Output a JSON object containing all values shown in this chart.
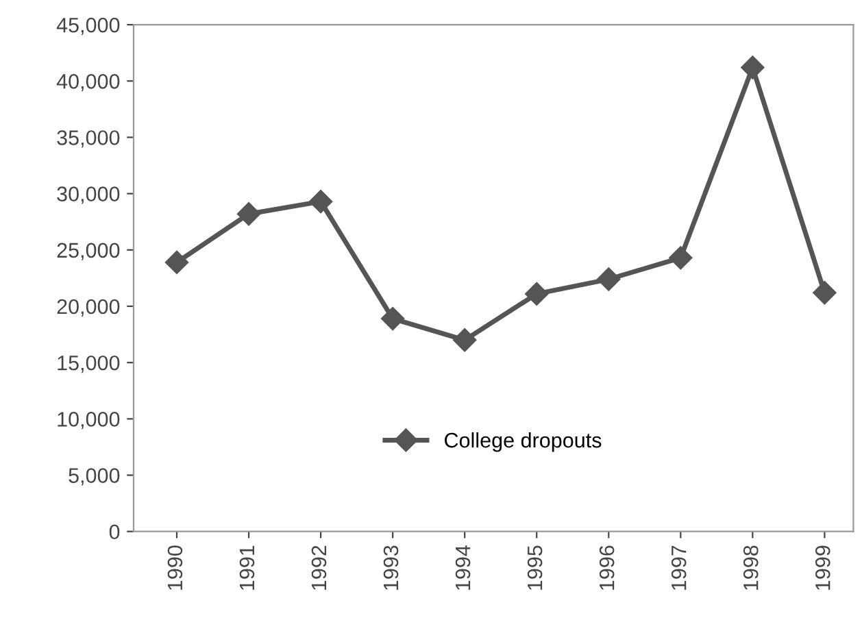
{
  "chart_data": {
    "type": "line",
    "categories": [
      "1990",
      "1991",
      "1992",
      "1993",
      "1994",
      "1995",
      "1996",
      "1997",
      "1998",
      "1999"
    ],
    "series": [
      {
        "name": "College dropouts",
        "color": "#555555",
        "values": [
          23900,
          28200,
          29300,
          18900,
          17000,
          21100,
          22400,
          24300,
          41200,
          21200
        ]
      }
    ],
    "ylim": [
      0,
      45000
    ],
    "yticks": [
      {
        "value": 0,
        "label": "0"
      },
      {
        "value": 5000,
        "label": "5,000"
      },
      {
        "value": 10000,
        "label": "10,000"
      },
      {
        "value": 15000,
        "label": "15,000"
      },
      {
        "value": 20000,
        "label": "20,000"
      },
      {
        "value": 25000,
        "label": "25,000"
      },
      {
        "value": 30000,
        "label": "30,000"
      },
      {
        "value": 35000,
        "label": "35,000"
      },
      {
        "value": 40000,
        "label": "40,000"
      },
      {
        "value": 45000,
        "label": "45,000"
      }
    ],
    "marker": "diamond",
    "line_style": "solid",
    "legend": "bottom",
    "grid": false
  }
}
